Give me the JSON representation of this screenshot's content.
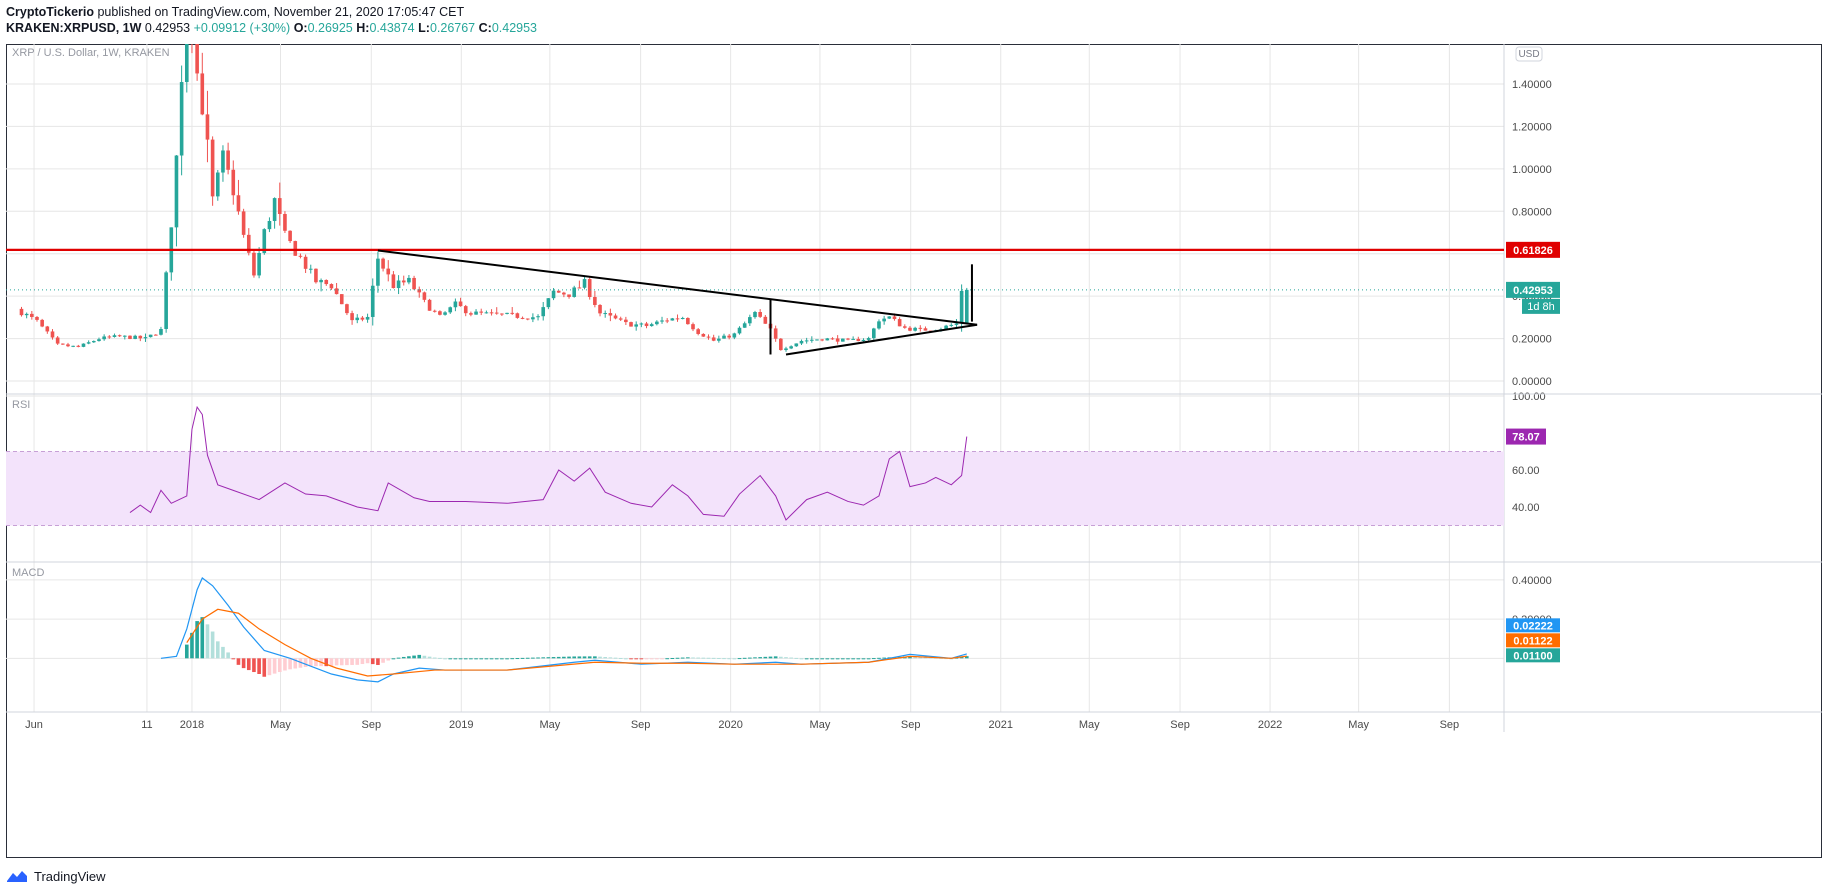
{
  "header": {
    "publisher": "CryptoTickerio",
    "published_text": "published on TradingView.com, November 21, 2020 17:05:47 CET",
    "symbol": "KRAKEN:XRPUSD, 1W",
    "last": "0.42953",
    "change": "+0.09912 (+30%)",
    "o_label": "O:",
    "o_value": "0.26925",
    "h_label": "H:",
    "h_value": "0.43874",
    "l_label": "L:",
    "l_value": "0.26767",
    "c_label": "C:",
    "c_value": "0.42953"
  },
  "footer": {
    "brand": "TradingView"
  },
  "colors": {
    "up": "#26a69a",
    "down": "#ef5350",
    "resistance": "#e00000",
    "rsi_line": "#9c27b0",
    "rsi_band": "#f3e3fb",
    "macd_line": "#2196f3",
    "signal_line": "#ff6d00",
    "grid": "#e6e6e6"
  },
  "chart_data": [
    {
      "type": "candlestick",
      "title": "XRP / U.S. Dollar, 1W, KRAKEN",
      "currency_badge": "USD",
      "timeframe": "1W",
      "x_range": [
        "2017-04-24",
        "2022-11-14"
      ],
      "ylim": [
        0,
        1.5
      ],
      "y_ticks": [
        "0.00000",
        "0.20000",
        "0.40000",
        "0.60000",
        "0.80000",
        "1.00000",
        "1.20000",
        "1.40000"
      ],
      "x_tick_labels": [
        {
          "date": "2017-06-01",
          "label": "Jun"
        },
        {
          "date": "2017-11-01",
          "label": "11"
        },
        {
          "date": "2018-01-01",
          "label": "2018"
        },
        {
          "date": "2018-05-01",
          "label": "May"
        },
        {
          "date": "2018-09-01",
          "label": "Sep"
        },
        {
          "date": "2019-01-01",
          "label": "2019"
        },
        {
          "date": "2019-05-01",
          "label": "May"
        },
        {
          "date": "2019-09-01",
          "label": "Sep"
        },
        {
          "date": "2020-01-01",
          "label": "2020"
        },
        {
          "date": "2020-05-01",
          "label": "May"
        },
        {
          "date": "2020-09-01",
          "label": "Sep"
        },
        {
          "date": "2021-01-01",
          "label": "2021"
        },
        {
          "date": "2021-05-01",
          "label": "May"
        },
        {
          "date": "2021-09-01",
          "label": "Sep"
        },
        {
          "date": "2022-01-01",
          "label": "2022"
        },
        {
          "date": "2022-05-01",
          "label": "May"
        },
        {
          "date": "2022-09-01",
          "label": "Sep"
        }
      ],
      "anchors": [
        [
          "2017-05-15",
          0.34
        ],
        [
          "2017-06-12",
          0.28
        ],
        [
          "2017-07-10",
          0.17
        ],
        [
          "2017-08-07",
          0.16
        ],
        [
          "2017-09-04",
          0.2
        ],
        [
          "2017-10-02",
          0.21
        ],
        [
          "2017-11-06",
          0.2
        ],
        [
          "2017-11-27",
          0.24
        ],
        [
          "2017-12-11",
          0.75
        ],
        [
          "2017-12-18",
          1.05
        ],
        [
          "2017-12-25",
          1.45
        ],
        [
          "2018-01-01",
          2.35
        ],
        [
          "2018-01-08",
          1.75
        ],
        [
          "2018-01-15",
          1.45
        ],
        [
          "2018-01-22",
          1.3
        ],
        [
          "2018-01-29",
          1.1
        ],
        [
          "2018-02-05",
          0.85
        ],
        [
          "2018-02-19",
          1.05
        ],
        [
          "2018-03-05",
          0.9
        ],
        [
          "2018-03-19",
          0.68
        ],
        [
          "2018-04-02",
          0.5
        ],
        [
          "2018-04-16",
          0.7
        ],
        [
          "2018-04-30",
          0.85
        ],
        [
          "2018-05-14",
          0.68
        ],
        [
          "2018-06-04",
          0.58
        ],
        [
          "2018-06-25",
          0.47
        ],
        [
          "2018-07-16",
          0.45
        ],
        [
          "2018-08-13",
          0.28
        ],
        [
          "2018-09-03",
          0.3
        ],
        [
          "2018-09-17",
          0.58
        ],
        [
          "2018-10-08",
          0.45
        ],
        [
          "2018-10-29",
          0.47
        ],
        [
          "2018-11-19",
          0.37
        ],
        [
          "2018-12-10",
          0.3
        ],
        [
          "2018-12-31",
          0.36
        ],
        [
          "2019-01-21",
          0.32
        ],
        [
          "2019-03-04",
          0.31
        ],
        [
          "2019-04-22",
          0.3
        ],
        [
          "2019-05-13",
          0.42
        ],
        [
          "2019-06-03",
          0.41
        ],
        [
          "2019-06-24",
          0.46
        ],
        [
          "2019-07-15",
          0.32
        ],
        [
          "2019-08-19",
          0.27
        ],
        [
          "2019-09-16",
          0.26
        ],
        [
          "2019-10-14",
          0.29
        ],
        [
          "2019-11-04",
          0.3
        ],
        [
          "2019-11-25",
          0.23
        ],
        [
          "2019-12-16",
          0.19
        ],
        [
          "2020-01-13",
          0.22
        ],
        [
          "2020-02-10",
          0.32
        ],
        [
          "2020-03-02",
          0.24
        ],
        [
          "2020-03-16",
          0.15
        ],
        [
          "2020-04-13",
          0.19
        ],
        [
          "2020-05-11",
          0.2
        ],
        [
          "2020-06-15",
          0.19
        ],
        [
          "2020-07-13",
          0.2
        ],
        [
          "2020-07-27",
          0.29
        ],
        [
          "2020-08-10",
          0.3
        ],
        [
          "2020-08-31",
          0.25
        ],
        [
          "2020-09-21",
          0.24
        ],
        [
          "2020-10-19",
          0.25
        ],
        [
          "2020-11-09",
          0.27
        ],
        [
          "2020-11-16",
          0.43
        ]
      ],
      "last_candle": {
        "date": "2020-11-16",
        "open": 0.26925,
        "high": 0.43874,
        "low": 0.26767,
        "close": 0.42953
      },
      "resistance_line": {
        "value": 0.61826,
        "label": "0.61826"
      },
      "price_label": {
        "value": 0.42953,
        "label": "0.42953",
        "countdown": "1d 8h"
      },
      "drawings": {
        "descending_trendline": [
          [
            "2018-09-10",
            0.615
          ],
          [
            "2020-11-30",
            0.265
          ]
        ],
        "ascending_trendline": [
          [
            "2020-03-16",
            0.125
          ],
          [
            "2020-11-30",
            0.265
          ]
        ],
        "vertical_at_2020_02": [
          [
            "2020-02-24",
            0.385
          ],
          [
            "2020-02-24",
            0.125
          ]
        ],
        "vertical_at_2020_11": [
          [
            "2020-11-23",
            0.55
          ],
          [
            "2020-11-23",
            0.28
          ]
        ]
      }
    },
    {
      "type": "line",
      "title": "RSI",
      "ylim": [
        25,
        100
      ],
      "y_ticks": [
        "40.00",
        "60.00",
        "100.00"
      ],
      "band": [
        30,
        70
      ],
      "last_value_label": "78.07",
      "series": [
        {
          "values": [
            [
              "2017-10-09",
              37
            ],
            [
              "2017-10-23",
              41
            ],
            [
              "2017-11-06",
              37
            ],
            [
              "2017-11-20",
              49
            ],
            [
              "2017-12-04",
              42
            ],
            [
              "2017-12-25",
              46
            ],
            [
              "2018-01-01",
              82
            ],
            [
              "2018-01-08",
              94
            ],
            [
              "2018-01-15",
              90
            ],
            [
              "2018-01-22",
              68
            ],
            [
              "2018-02-05",
              52
            ],
            [
              "2018-02-26",
              49
            ],
            [
              "2018-04-02",
              44
            ],
            [
              "2018-05-07",
              53
            ],
            [
              "2018-06-04",
              47
            ],
            [
              "2018-07-02",
              46
            ],
            [
              "2018-08-13",
              40
            ],
            [
              "2018-09-10",
              38
            ],
            [
              "2018-09-24",
              53
            ],
            [
              "2018-10-29",
              45
            ],
            [
              "2018-11-19",
              43
            ],
            [
              "2019-01-07",
              43
            ],
            [
              "2019-03-04",
              42
            ],
            [
              "2019-04-22",
              44
            ],
            [
              "2019-05-13",
              60
            ],
            [
              "2019-06-03",
              54
            ],
            [
              "2019-06-24",
              61
            ],
            [
              "2019-07-15",
              48
            ],
            [
              "2019-08-19",
              42
            ],
            [
              "2019-09-16",
              40
            ],
            [
              "2019-10-14",
              52
            ],
            [
              "2019-11-04",
              46
            ],
            [
              "2019-11-25",
              36
            ],
            [
              "2019-12-23",
              35
            ],
            [
              "2020-01-13",
              47
            ],
            [
              "2020-02-10",
              57
            ],
            [
              "2020-03-02",
              46
            ],
            [
              "2020-03-16",
              33
            ],
            [
              "2020-04-13",
              44
            ],
            [
              "2020-05-11",
              48
            ],
            [
              "2020-06-08",
              43
            ],
            [
              "2020-06-29",
              41
            ],
            [
              "2020-07-20",
              46
            ],
            [
              "2020-08-03",
              66
            ],
            [
              "2020-08-17",
              70
            ],
            [
              "2020-08-31",
              51
            ],
            [
              "2020-09-21",
              53
            ],
            [
              "2020-10-05",
              56
            ],
            [
              "2020-10-26",
              52
            ],
            [
              "2020-11-09",
              57
            ],
            [
              "2020-11-16",
              78.07
            ]
          ]
        }
      ]
    },
    {
      "type": "line+histogram",
      "title": "MACD",
      "ylim": [
        -0.15,
        0.45
      ],
      "y_ticks": [
        "0.20000",
        "0.40000"
      ],
      "labels": {
        "macd": "0.02222",
        "signal": "0.01122",
        "histogram": "0.01100"
      },
      "series": [
        {
          "values": [
            [
              "2017-11-20",
              0.0
            ],
            [
              "2017-12-11",
              0.01
            ],
            [
              "2017-12-25",
              0.15
            ],
            [
              "2018-01-08",
              0.35
            ],
            [
              "2018-01-15",
              0.41
            ],
            [
              "2018-01-29",
              0.37
            ],
            [
              "2018-02-19",
              0.27
            ],
            [
              "2018-03-12",
              0.16
            ],
            [
              "2018-04-09",
              0.04
            ],
            [
              "2018-05-14",
              0.0
            ],
            [
              "2018-06-11",
              -0.04
            ],
            [
              "2018-07-09",
              -0.08
            ],
            [
              "2018-08-13",
              -0.11
            ],
            [
              "2018-09-10",
              -0.12
            ],
            [
              "2018-10-01",
              -0.08
            ],
            [
              "2018-11-05",
              -0.05
            ],
            [
              "2018-12-10",
              -0.06
            ],
            [
              "2019-03-04",
              -0.06
            ],
            [
              "2019-06-03",
              -0.02
            ],
            [
              "2019-07-01",
              -0.01
            ],
            [
              "2019-09-02",
              -0.03
            ],
            [
              "2019-11-04",
              -0.02
            ],
            [
              "2020-01-06",
              -0.03
            ],
            [
              "2020-03-02",
              -0.02
            ],
            [
              "2020-04-06",
              -0.03
            ],
            [
              "2020-07-06",
              -0.02
            ],
            [
              "2020-08-31",
              0.02
            ],
            [
              "2020-10-26",
              0.0
            ],
            [
              "2020-11-16",
              0.02222
            ]
          ]
        },
        {
          "values": [
            [
              "2017-12-25",
              0.08
            ],
            [
              "2018-01-15",
              0.2
            ],
            [
              "2018-02-05",
              0.25
            ],
            [
              "2018-03-05",
              0.23
            ],
            [
              "2018-04-02",
              0.15
            ],
            [
              "2018-05-07",
              0.07
            ],
            [
              "2018-06-11",
              0.0
            ],
            [
              "2018-07-16",
              -0.05
            ],
            [
              "2018-08-27",
              -0.09
            ],
            [
              "2018-10-01",
              -0.08
            ],
            [
              "2018-11-26",
              -0.06
            ],
            [
              "2019-03-04",
              -0.06
            ],
            [
              "2019-07-01",
              -0.02
            ],
            [
              "2019-09-02",
              -0.025
            ],
            [
              "2019-11-04",
              -0.025
            ],
            [
              "2020-01-06",
              -0.03
            ],
            [
              "2020-04-06",
              -0.03
            ],
            [
              "2020-07-06",
              -0.02
            ],
            [
              "2020-08-31",
              0.01
            ],
            [
              "2020-10-26",
              0.0
            ],
            [
              "2020-11-16",
              0.01122
            ]
          ]
        }
      ]
    }
  ]
}
